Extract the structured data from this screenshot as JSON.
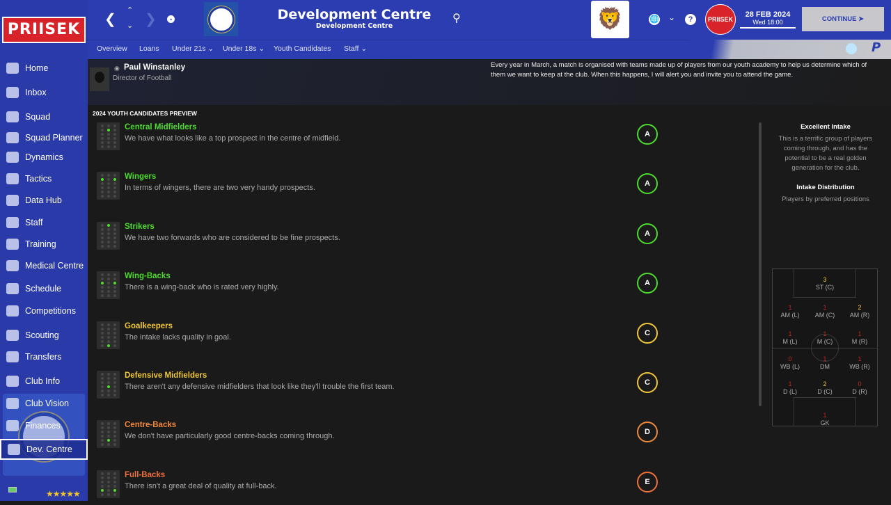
{
  "sidebar": {
    "logo": "PRIISEK",
    "items": [
      {
        "label": "Home",
        "icon": "home-icon"
      },
      {
        "label": "Inbox",
        "icon": "inbox-icon"
      },
      {
        "label": "Squad",
        "icon": "squad-icon"
      },
      {
        "label": "Squad Planner",
        "icon": "clipboard-icon"
      },
      {
        "label": "Dynamics",
        "icon": "dynamics-icon"
      },
      {
        "label": "Tactics",
        "icon": "tactics-icon"
      },
      {
        "label": "Data Hub",
        "icon": "data-hub-icon"
      },
      {
        "label": "Staff",
        "icon": "staff-icon"
      },
      {
        "label": "Training",
        "icon": "training-icon"
      },
      {
        "label": "Medical Centre",
        "icon": "medical-icon"
      },
      {
        "label": "Schedule",
        "icon": "calendar-icon"
      },
      {
        "label": "Competitions",
        "icon": "trophy-icon"
      },
      {
        "label": "Scouting",
        "icon": "scouting-icon"
      },
      {
        "label": "Transfers",
        "icon": "transfers-icon"
      },
      {
        "label": "Club Info",
        "icon": "club-info-icon"
      },
      {
        "label": "Club Vision",
        "icon": "club-vision-icon"
      },
      {
        "label": "Finances",
        "icon": "finances-icon"
      },
      {
        "label": "Dev. Centre",
        "icon": "dev-centre-icon"
      }
    ],
    "club_crest": "CHELSEA FOOTBALL CLUB",
    "rating_stars": 4.5
  },
  "header": {
    "title": "Development Centre",
    "subtitle": "Development Centre",
    "date": "28 FEB 2024",
    "time": "Wed 18:00",
    "continue_label": "CONTINUE",
    "badge": "PRIISEK"
  },
  "tabs": [
    "Overview",
    "Loans",
    "Under 21s",
    "Under 18s",
    "Youth Candidates",
    "Staff"
  ],
  "tab_dropdowns": [
    false,
    false,
    true,
    true,
    false,
    true
  ],
  "person": {
    "name": "Paul Winstanley",
    "role": "Director of Football",
    "message": "Every year in March, a match is organised with teams made up of players from our youth academy to help us determine which of them we want to keep at the club. When this happens, I will alert you and invite you to attend the game."
  },
  "section_title": "2024 YOUTH CANDIDATES PREVIEW",
  "candidates": [
    {
      "title": "Central Midfielders",
      "desc": "We have what looks like a top prospect in the centre of midfield.",
      "grade": "A",
      "color": "#4cdc2c"
    },
    {
      "title": "Wingers",
      "desc": "In terms of wingers, there are two very handy prospects.",
      "grade": "A",
      "color": "#4cdc2c"
    },
    {
      "title": "Strikers",
      "desc": "We have two forwards who are considered to be fine prospects.",
      "grade": "A",
      "color": "#4cdc2c"
    },
    {
      "title": "Wing-Backs",
      "desc": "There is a wing-back who is rated very highly.",
      "grade": "A",
      "color": "#4cdc2c"
    },
    {
      "title": "Goalkeepers",
      "desc": "The intake lacks quality in goal.",
      "grade": "C",
      "color": "#f0c83a"
    },
    {
      "title": "Defensive Midfielders",
      "desc": "There aren't any defensive midfielders that look like they'll trouble the first team.",
      "grade": "C",
      "color": "#f0c83a"
    },
    {
      "title": "Centre-Backs",
      "desc": "We don't have particularly good centre-backs coming through.",
      "grade": "D",
      "color": "#f08a3a"
    },
    {
      "title": "Full-Backs",
      "desc": "There isn't a great deal of quality at full-back.",
      "grade": "E",
      "color": "#f0703a"
    }
  ],
  "summary": {
    "heading": "Excellent Intake",
    "text": "This is a terrific group of players coming through, and has the potential to be a real golden generation for the club.",
    "dist_heading": "Intake Distribution",
    "dist_sub": "Players by preferred positions"
  },
  "distribution": [
    {
      "pos": "ST (C)",
      "n": "3"
    },
    {
      "pos": "AM (L)",
      "n": "1"
    },
    {
      "pos": "AM (C)",
      "n": "1"
    },
    {
      "pos": "AM (R)",
      "n": "2"
    },
    {
      "pos": "M (L)",
      "n": "1"
    },
    {
      "pos": "M (C)",
      "n": "1"
    },
    {
      "pos": "M (R)",
      "n": "1"
    },
    {
      "pos": "WB (L)",
      "n": "0"
    },
    {
      "pos": "DM",
      "n": "1"
    },
    {
      "pos": "WB (R)",
      "n": "1"
    },
    {
      "pos": "D (L)",
      "n": "1"
    },
    {
      "pos": "D (C)",
      "n": "2"
    },
    {
      "pos": "D (R)",
      "n": "0"
    },
    {
      "pos": "GK",
      "n": "1"
    }
  ]
}
